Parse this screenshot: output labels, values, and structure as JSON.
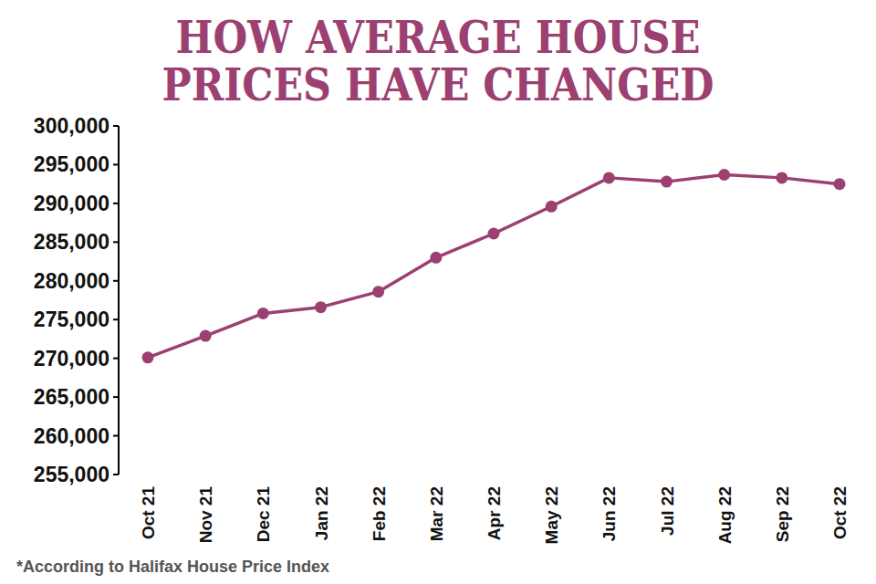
{
  "chart_data": {
    "type": "line",
    "title": "HOW AVERAGE HOUSE PRICES HAVE CHANGED",
    "annotations": [
      "*According to Halifax House Price Index"
    ],
    "categories": [
      "Oct 21",
      "Nov 21",
      "Dec 21",
      "Jan 22",
      "Feb 22",
      "Mar 22",
      "Apr 22",
      "May 22",
      "Jun 22",
      "Jul 22",
      "Aug 22",
      "Sep 22",
      "Oct 22"
    ],
    "values": [
      270100,
      272900,
      275800,
      276600,
      278600,
      283000,
      286100,
      289600,
      293300,
      292800,
      293700,
      293300,
      292500
    ],
    "color": "#9b4070",
    "marker": "circle",
    "grid": false,
    "ylim": [
      255000,
      300000
    ],
    "yticks": [
      {
        "value": 255000,
        "label": "255,000"
      },
      {
        "value": 260000,
        "label": "260,000"
      },
      {
        "value": 265000,
        "label": "265,000"
      },
      {
        "value": 270000,
        "label": "270,000"
      },
      {
        "value": 275000,
        "label": "275,000"
      },
      {
        "value": 280000,
        "label": "280,000"
      },
      {
        "value": 285000,
        "label": "285,000"
      },
      {
        "value": 290000,
        "label": "290,000"
      },
      {
        "value": 295000,
        "label": "295,000"
      },
      {
        "value": 300000,
        "label": "300,000"
      }
    ]
  }
}
